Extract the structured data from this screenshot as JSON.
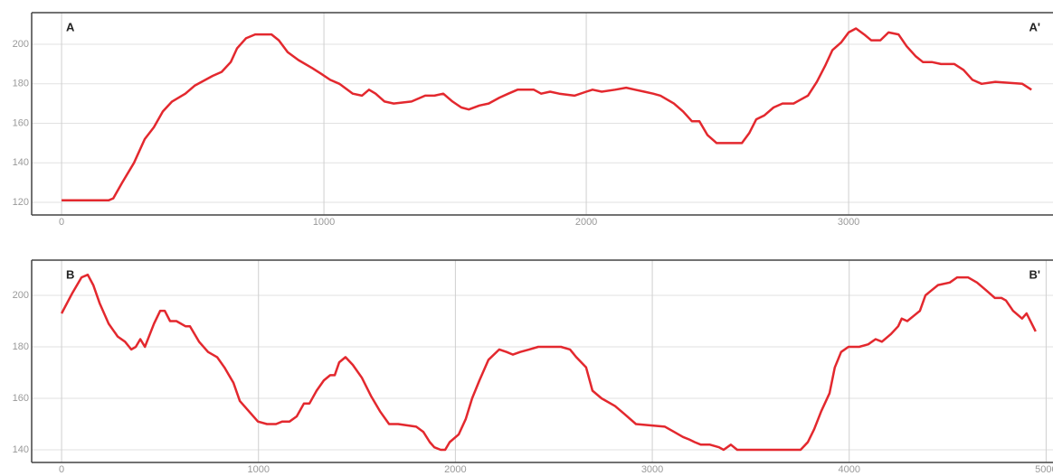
{
  "chart_data": [
    {
      "type": "line",
      "annotations": [
        "A",
        "A'"
      ],
      "grid": true,
      "xlim": [
        -114,
        3779
      ],
      "ylim": [
        113.6,
        216
      ],
      "xticks": [
        0,
        1000,
        2000,
        3000
      ],
      "yticks": [
        120,
        140,
        160,
        180,
        200
      ],
      "x": [
        0,
        179,
        197,
        231,
        276,
        317,
        352,
        386,
        421,
        472,
        507,
        576,
        610,
        645,
        669,
        703,
        738,
        800,
        828,
        862,
        903,
        955,
        990,
        1024,
        1059,
        1110,
        1145,
        1172,
        1197,
        1231,
        1266,
        1334,
        1386,
        1421,
        1455,
        1490,
        1524,
        1552,
        1593,
        1628,
        1669,
        1703,
        1738,
        1800,
        1828,
        1862,
        1897,
        1955,
        2000,
        2024,
        2059,
        2110,
        2152,
        2186,
        2221,
        2255,
        2283,
        2334,
        2369,
        2403,
        2431,
        2462,
        2497,
        2593,
        2621,
        2648,
        2679,
        2714,
        2748,
        2790,
        2817,
        2845,
        2879,
        2910,
        2938,
        2972,
        3000,
        3028,
        3059,
        3086,
        3121,
        3152,
        3190,
        3221,
        3255,
        3283,
        3317,
        3352,
        3403,
        3438,
        3472,
        3507,
        3559,
        3662,
        3697
      ],
      "series": [
        {
          "color": "#e3282e",
          "values": [
            121,
            121,
            122,
            130,
            140,
            152,
            158,
            166,
            171,
            175,
            179,
            184,
            186,
            191,
            198,
            203,
            205,
            205,
            202,
            196,
            192,
            188,
            185,
            182,
            180,
            175,
            174,
            177,
            175,
            171,
            170,
            171,
            174,
            174,
            175,
            171,
            168,
            167,
            169,
            170,
            173,
            175,
            177,
            177,
            175,
            176,
            175,
            174,
            176,
            177,
            176,
            177,
            178,
            177,
            176,
            175,
            174,
            170,
            166,
            161,
            161,
            154,
            150,
            150,
            155,
            162,
            164,
            168,
            170,
            170,
            172,
            174,
            181,
            189,
            197,
            201,
            206,
            208,
            205,
            202,
            202,
            206,
            205,
            199,
            194,
            191,
            191,
            190,
            190,
            187,
            182,
            180,
            181,
            180,
            177
          ]
        }
      ]
    },
    {
      "type": "line",
      "annotations": [
        "B",
        "B'"
      ],
      "grid": true,
      "xlim": [
        -152,
        5035
      ],
      "ylim": [
        135.1,
        213.7
      ],
      "xticks": [
        0,
        1000,
        2000,
        3000,
        4000,
        5000
      ],
      "yticks": [
        140,
        160,
        180,
        200
      ],
      "x": [
        0,
        55,
        101,
        133,
        161,
        193,
        239,
        285,
        322,
        354,
        377,
        400,
        423,
        469,
        501,
        524,
        551,
        583,
        629,
        652,
        698,
        744,
        790,
        827,
        873,
        905,
        951,
        997,
        1043,
        1089,
        1121,
        1158,
        1194,
        1231,
        1259,
        1295,
        1332,
        1364,
        1387,
        1410,
        1442,
        1479,
        1525,
        1571,
        1617,
        1663,
        1709,
        1801,
        1837,
        1870,
        1893,
        1925,
        1948,
        1971,
        2017,
        2053,
        2085,
        2122,
        2168,
        2223,
        2260,
        2292,
        2329,
        2375,
        2421,
        2536,
        2582,
        2614,
        2664,
        2696,
        2742,
        2811,
        2857,
        2917,
        3064,
        3110,
        3156,
        3188,
        3215,
        3247,
        3293,
        3339,
        3362,
        3399,
        3431,
        3500,
        3753,
        3790,
        3822,
        3858,
        3900,
        3927,
        3959,
        3996,
        4051,
        4097,
        4134,
        4166,
        4212,
        4249,
        4267,
        4295,
        4327,
        4359,
        4387,
        4419,
        4451,
        4511,
        4548,
        4603,
        4649,
        4695,
        4740,
        4773,
        4796,
        4832,
        4878,
        4901,
        4947
      ],
      "series": [
        {
          "color": "#e3282e",
          "values": [
            193,
            201,
            207,
            208,
            204,
            197,
            189,
            184,
            182,
            179,
            180,
            183,
            180,
            189,
            194,
            194,
            190,
            190,
            188,
            188,
            182,
            178,
            176,
            172,
            166,
            159,
            155,
            151,
            150,
            150,
            151,
            151,
            153,
            158,
            158,
            163,
            167,
            169,
            169,
            174,
            176,
            173,
            168,
            161,
            155,
            150,
            150,
            149,
            147,
            143,
            141,
            140,
            140,
            143,
            146,
            152,
            160,
            167,
            175,
            179,
            178,
            177,
            178,
            179,
            180,
            180,
            179,
            176,
            172,
            163,
            160,
            157,
            154,
            150,
            149,
            147,
            145,
            144,
            143,
            142,
            142,
            141,
            140,
            142,
            140,
            140,
            140,
            143,
            148,
            155,
            162,
            172,
            178,
            180,
            180,
            181,
            183,
            182,
            185,
            188,
            191,
            190,
            192,
            194,
            200,
            202,
            204,
            205,
            207,
            207,
            205,
            202,
            199,
            199,
            198,
            194,
            191,
            193,
            186
          ]
        }
      ]
    }
  ]
}
